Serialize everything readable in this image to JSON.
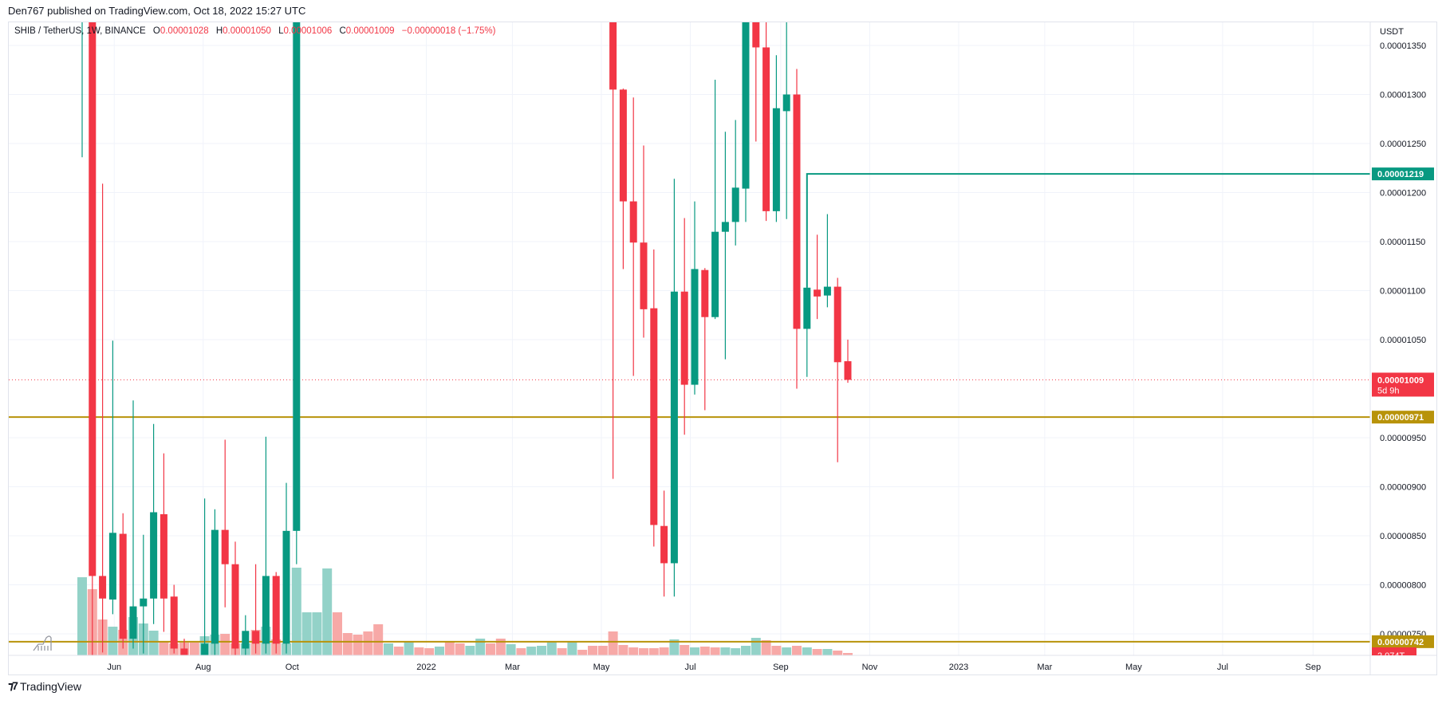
{
  "publish_line": "Den767 published on TradingView.com, Oct 18, 2022 15:27 UTC",
  "legend": {
    "symbol": "SHIB / TetherUS, 1W, BINANCE",
    "o_label": "O",
    "o": "0.00001028",
    "h_label": "H",
    "h": "0.00001050",
    "l_label": "L",
    "l": "0.00001006",
    "c_label": "C",
    "c": "0.00001009",
    "change": "−0.00000018 (−1.75%)"
  },
  "footer": {
    "brand": "TradingView",
    "logo_icon": "tradingview-logo-icon"
  },
  "colors": {
    "up": "#089981",
    "down": "#f23645",
    "up_volume": "#93d2c8",
    "down_volume": "#f7a9a7",
    "level": "#b8930a",
    "resistance": "#089981"
  },
  "chart_data": {
    "type": "candlestick",
    "title": "SHIB / TetherUS, 1W, BINANCE",
    "currency": "USDT",
    "price_unit": "1e-8 USDT",
    "ylim": [
      742,
      1360
    ],
    "first_week": "2021-05-10",
    "y_ticks": [
      "0.00001350",
      "0.00001300",
      "0.00001250",
      "0.00001200",
      "0.00001150",
      "0.00001100",
      "0.00001050",
      "0.00000950",
      "0.00000900",
      "0.00000850",
      "0.00000800",
      "0.00000750"
    ],
    "y_tick_values": [
      1350,
      1300,
      1250,
      1200,
      1150,
      1100,
      1050,
      950,
      900,
      850,
      800,
      750
    ],
    "x_ticks": [
      {
        "label": "Jun",
        "date": "2021-06-01"
      },
      {
        "label": "Aug",
        "date": "2021-08-01"
      },
      {
        "label": "Oct",
        "date": "2021-10-01"
      },
      {
        "label": "2022",
        "date": "2022-01-01"
      },
      {
        "label": "Mar",
        "date": "2022-03-01"
      },
      {
        "label": "May",
        "date": "2022-05-01"
      },
      {
        "label": "Jul",
        "date": "2022-07-01"
      },
      {
        "label": "Sep",
        "date": "2022-09-01"
      },
      {
        "label": "Nov",
        "date": "2022-11-01"
      },
      {
        "label": "2023",
        "date": "2023-01-01"
      },
      {
        "label": "Mar",
        "date": "2023-03-01"
      },
      {
        "label": "May",
        "date": "2023-05-01"
      },
      {
        "label": "Jul",
        "date": "2023-07-01"
      },
      {
        "label": "Sep",
        "date": "2023-09-01"
      }
    ],
    "candles": [
      [
        1400,
        1700,
        1236,
        1600
      ],
      [
        1600,
        1650,
        700,
        809
      ],
      [
        809,
        1209,
        731,
        786
      ],
      [
        785,
        1049,
        770,
        853
      ],
      [
        852,
        873,
        735,
        745
      ],
      [
        745,
        988,
        735,
        778
      ],
      [
        778,
        851,
        730,
        786
      ],
      [
        786,
        964,
        760,
        874
      ],
      [
        872,
        934,
        752,
        786
      ],
      [
        788,
        800,
        730,
        735
      ],
      [
        735,
        745,
        690,
        700
      ],
      [
        700,
        720,
        680,
        690
      ],
      [
        690,
        888,
        680,
        740
      ],
      [
        740,
        877,
        700,
        856
      ],
      [
        856,
        948,
        777,
        821
      ],
      [
        821,
        844,
        725,
        735
      ],
      [
        735,
        769,
        725,
        753
      ],
      [
        753,
        821,
        730,
        740
      ],
      [
        740,
        951,
        730,
        809
      ],
      [
        809,
        813,
        730,
        740
      ],
      [
        740,
        904,
        730,
        855
      ],
      [
        855,
        1600,
        821,
        1500
      ],
      null,
      null,
      null,
      null,
      null,
      null,
      null,
      null,
      null,
      null,
      null,
      null,
      null,
      null,
      null,
      null,
      null,
      null,
      null,
      null,
      null,
      null,
      null,
      null,
      null,
      null,
      null,
      null,
      null,
      null,
      [
        1500,
        1550,
        908,
        1305
      ],
      [
        1305,
        1306,
        1122,
        1191
      ],
      [
        1191,
        1297,
        1013,
        1149
      ],
      [
        1149,
        1248,
        1052,
        1081
      ],
      [
        1082,
        1142,
        839,
        861
      ],
      [
        860,
        896,
        788,
        822
      ],
      [
        822,
        1214,
        788,
        1099
      ],
      [
        1099,
        1174,
        953,
        1004
      ],
      [
        1004,
        1191,
        994,
        1122
      ],
      [
        1121,
        1123,
        978,
        1073
      ],
      [
        1073,
        1315,
        1071,
        1160
      ],
      [
        1160,
        1262,
        1030,
        1170
      ],
      [
        1170,
        1274,
        1146,
        1205
      ],
      [
        1204,
        1500,
        1170,
        1450
      ],
      [
        1420,
        1480,
        1252,
        1348
      ],
      [
        1348,
        1400,
        1171,
        1181
      ],
      [
        1181,
        1340,
        1170,
        1286
      ],
      [
        1283,
        1385,
        1173,
        1300
      ],
      [
        1300,
        1326,
        1000,
        1061
      ],
      [
        1061,
        1219,
        1012,
        1103
      ],
      [
        1101,
        1157,
        1071,
        1094
      ],
      [
        1095,
        1178,
        1083,
        1104
      ],
      [
        1104,
        1113,
        925,
        1027
      ],
      [
        1028,
        1050,
        1006,
        1009
      ]
    ],
    "volume_relative": [
      98,
      83,
      45,
      36,
      32,
      48,
      40,
      31,
      18,
      15,
      16,
      16,
      24,
      26,
      27,
      15,
      15,
      32,
      36,
      20,
      15,
      200,
      54,
      54,
      109,
      54,
      28,
      26,
      30,
      39,
      15,
      11,
      18,
      10,
      9,
      11,
      17,
      15,
      12,
      21,
      15,
      21,
      14,
      9,
      11,
      12,
      17,
      9,
      17,
      7,
      12,
      12,
      30,
      13,
      10,
      9,
      9,
      10,
      20,
      13,
      10,
      11,
      10,
      10,
      9,
      12,
      22,
      19,
      12,
      10,
      12,
      10,
      8,
      8,
      6,
      3
    ],
    "volume_up": [
      1,
      0,
      0,
      1,
      0,
      1,
      1,
      1,
      0,
      0,
      0,
      0,
      1,
      1,
      0,
      0,
      1,
      0,
      1,
      0,
      1,
      1,
      1,
      1,
      1,
      0,
      0,
      0,
      0,
      0,
      1,
      0,
      1,
      0,
      0,
      1,
      0,
      0,
      1,
      1,
      0,
      0,
      1,
      0,
      1,
      1,
      1,
      0,
      1,
      0,
      0,
      0,
      0,
      0,
      0,
      0,
      0,
      0,
      1,
      0,
      1,
      0,
      0,
      1,
      1,
      1,
      1,
      0,
      0,
      1,
      0,
      1,
      0,
      1,
      0,
      0
    ],
    "lines": [
      {
        "name": "resistance",
        "value": 1219,
        "label": "0.00001219",
        "from_week": 71
      },
      {
        "name": "support-upper",
        "value": 971,
        "label": "0.00000971"
      },
      {
        "name": "support-lower",
        "value": 742,
        "label": "0.00000742"
      }
    ],
    "last_price": {
      "value": 1009,
      "label": "0.00001009",
      "countdown": "5d 9h"
    },
    "volume_label": "2.074T"
  }
}
